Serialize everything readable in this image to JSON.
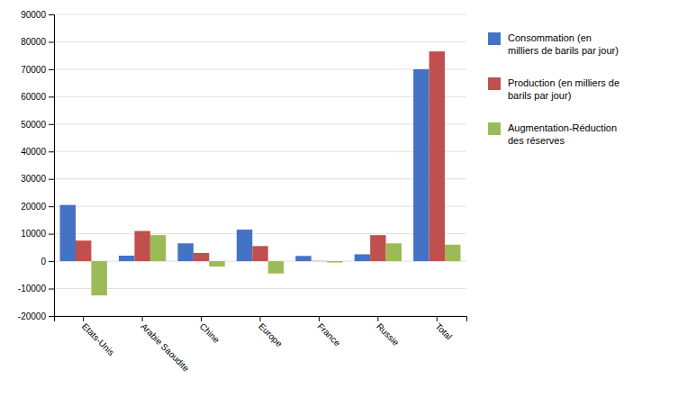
{
  "chart_data": {
    "type": "bar",
    "categories": [
      "Etats-Unis",
      "Arabie Saoudite",
      "Chine",
      "Europe",
      "France",
      "Russie",
      "Total"
    ],
    "series": [
      {
        "name": "Consommation (en\nmilliers de barils par jour)",
        "color": "#4472c4",
        "values": [
          20500,
          2000,
          6500,
          11500,
          1900,
          2500,
          70000
        ]
      },
      {
        "name": "Production (en milliers de\nbarils par jour)",
        "color": "#c0504d",
        "values": [
          7500,
          11000,
          3000,
          5500,
          100,
          9500,
          76500
        ]
      },
      {
        "name": "Augmentation-Réduction\ndes réserves",
        "color": "#9bbb59",
        "values": [
          -12500,
          9500,
          -2000,
          -4500,
          -500,
          6500,
          6000
        ]
      }
    ],
    "ylim": [
      -20000,
      90000
    ],
    "yticks": [
      -20000,
      -10000,
      0,
      10000,
      20000,
      30000,
      40000,
      50000,
      60000,
      70000,
      80000,
      90000
    ],
    "grid": true,
    "legend": "right"
  }
}
